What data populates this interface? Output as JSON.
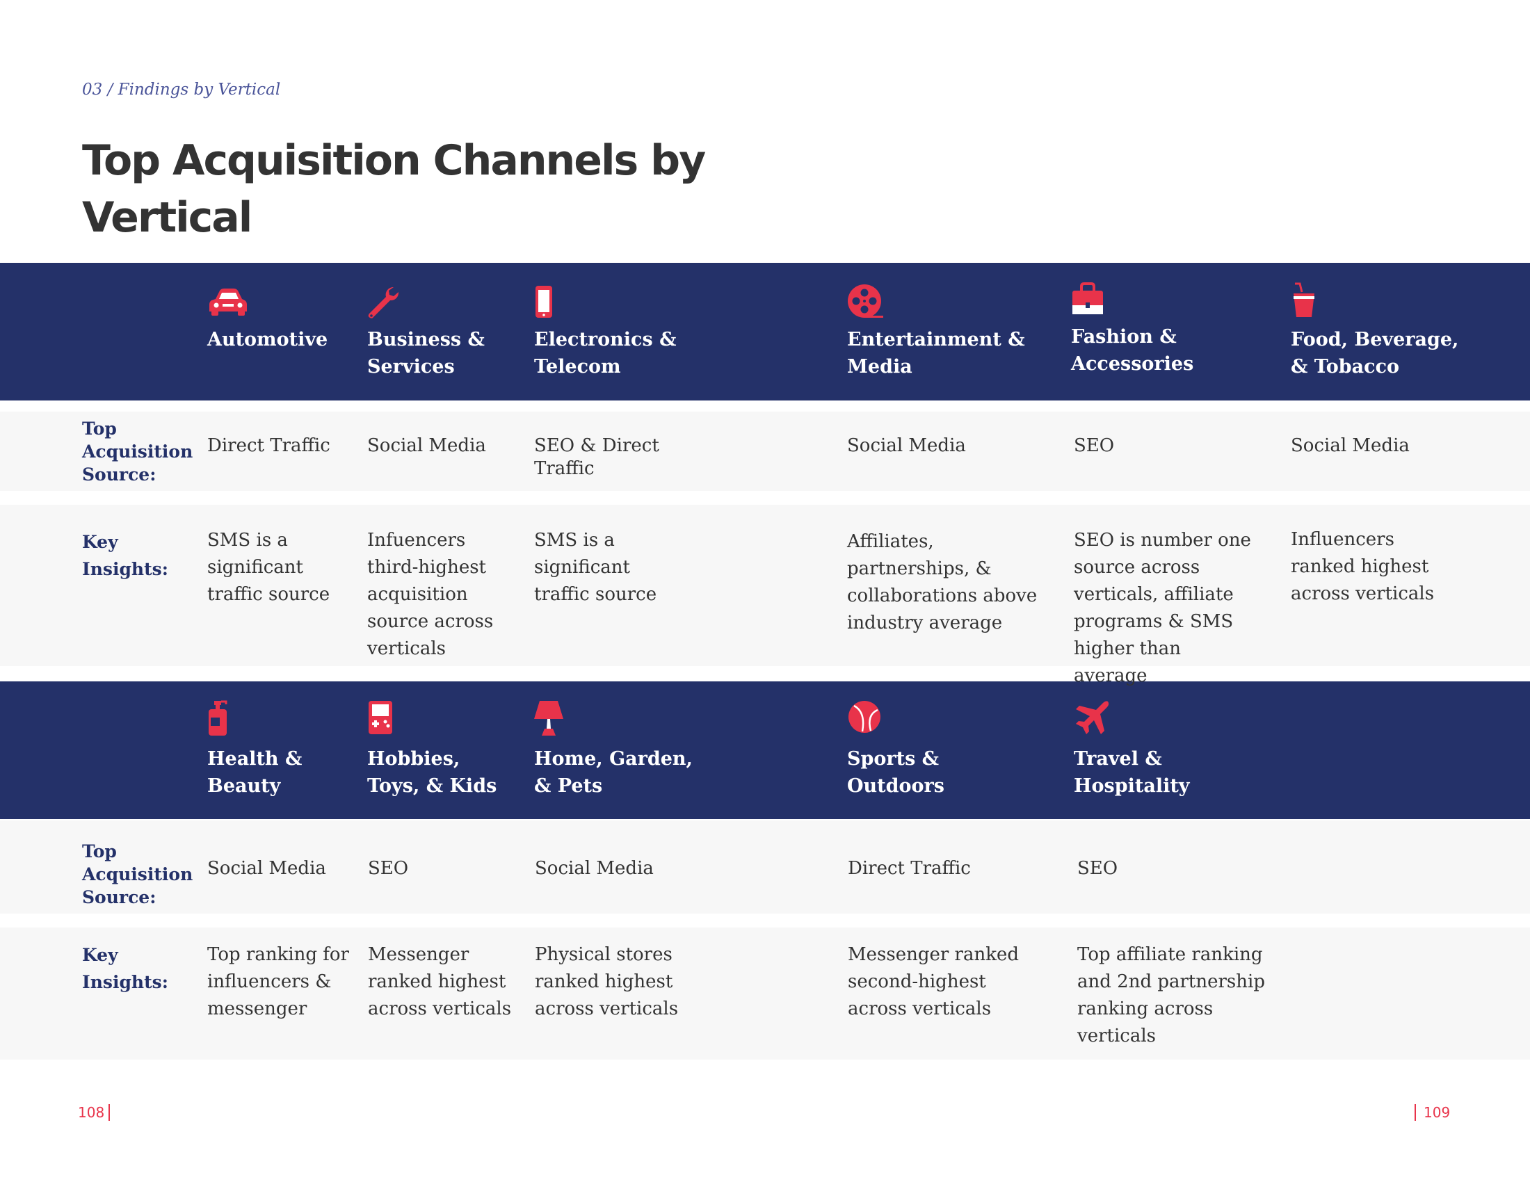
{
  "breadcrumb": "03 / Findings by Vertical",
  "title": "Top Acquisition Channels by Vertical",
  "labels": {
    "source": "Top Acquisition Source:",
    "insights": "Key Insights:"
  },
  "colors": {
    "band": "#243169",
    "accent": "#e8334a",
    "row": "#f7f7f7"
  },
  "row1": [
    {
      "icon": "car-icon",
      "name": "Automotive",
      "source": "Direct Traffic",
      "insight": "SMS is a significant traffic source"
    },
    {
      "icon": "wrench-icon",
      "name": "Business & Services",
      "source": "Social Media",
      "insight": "Infuencers third-highest acquisition source across verticals"
    },
    {
      "icon": "smartphone-icon",
      "name": "Electronics & Telecom",
      "source": "SEO & Direct Traffic",
      "insight": "SMS is a significant traffic source"
    },
    {
      "icon": "film-reel-icon",
      "name": "Entertainment & Media",
      "source": "Social Media",
      "insight": "Affiliates, partnerships, & collaborations above industry average"
    },
    {
      "icon": "handbag-icon",
      "name": "Fashion & Accessories",
      "source": "SEO",
      "insight": "SEO is number one source across verticals, affiliate programs & SMS higher than average"
    },
    {
      "icon": "drink-cup-icon",
      "name": "Food, Beverage, & Tobacco",
      "source": "Social Media",
      "insight": "Influencers ranked highest across verticals"
    }
  ],
  "row2": [
    {
      "icon": "pump-bottle-icon",
      "name": "Health & Beauty",
      "source": "Social Media",
      "insight": "Top ranking for influencers & messenger"
    },
    {
      "icon": "gameboy-icon",
      "name": "Hobbies, Toys, & Kids",
      "source": "SEO",
      "insight": "Messenger ranked highest across verticals"
    },
    {
      "icon": "lamp-icon",
      "name": "Home, Garden, & Pets",
      "source": "Social Media",
      "insight": "Physical stores ranked highest across verticals"
    },
    {
      "icon": "ball-icon",
      "name": "Sports & Outdoors",
      "source": "Direct Traffic",
      "insight": "Messenger ranked second-highest across verticals"
    },
    {
      "icon": "airplane-icon",
      "name": "Travel & Hospitality",
      "source": "SEO",
      "insight": "Top affiliate ranking and 2nd partnership ranking across verticals"
    }
  ],
  "footer": {
    "left_page": "108",
    "right_page": "109"
  }
}
